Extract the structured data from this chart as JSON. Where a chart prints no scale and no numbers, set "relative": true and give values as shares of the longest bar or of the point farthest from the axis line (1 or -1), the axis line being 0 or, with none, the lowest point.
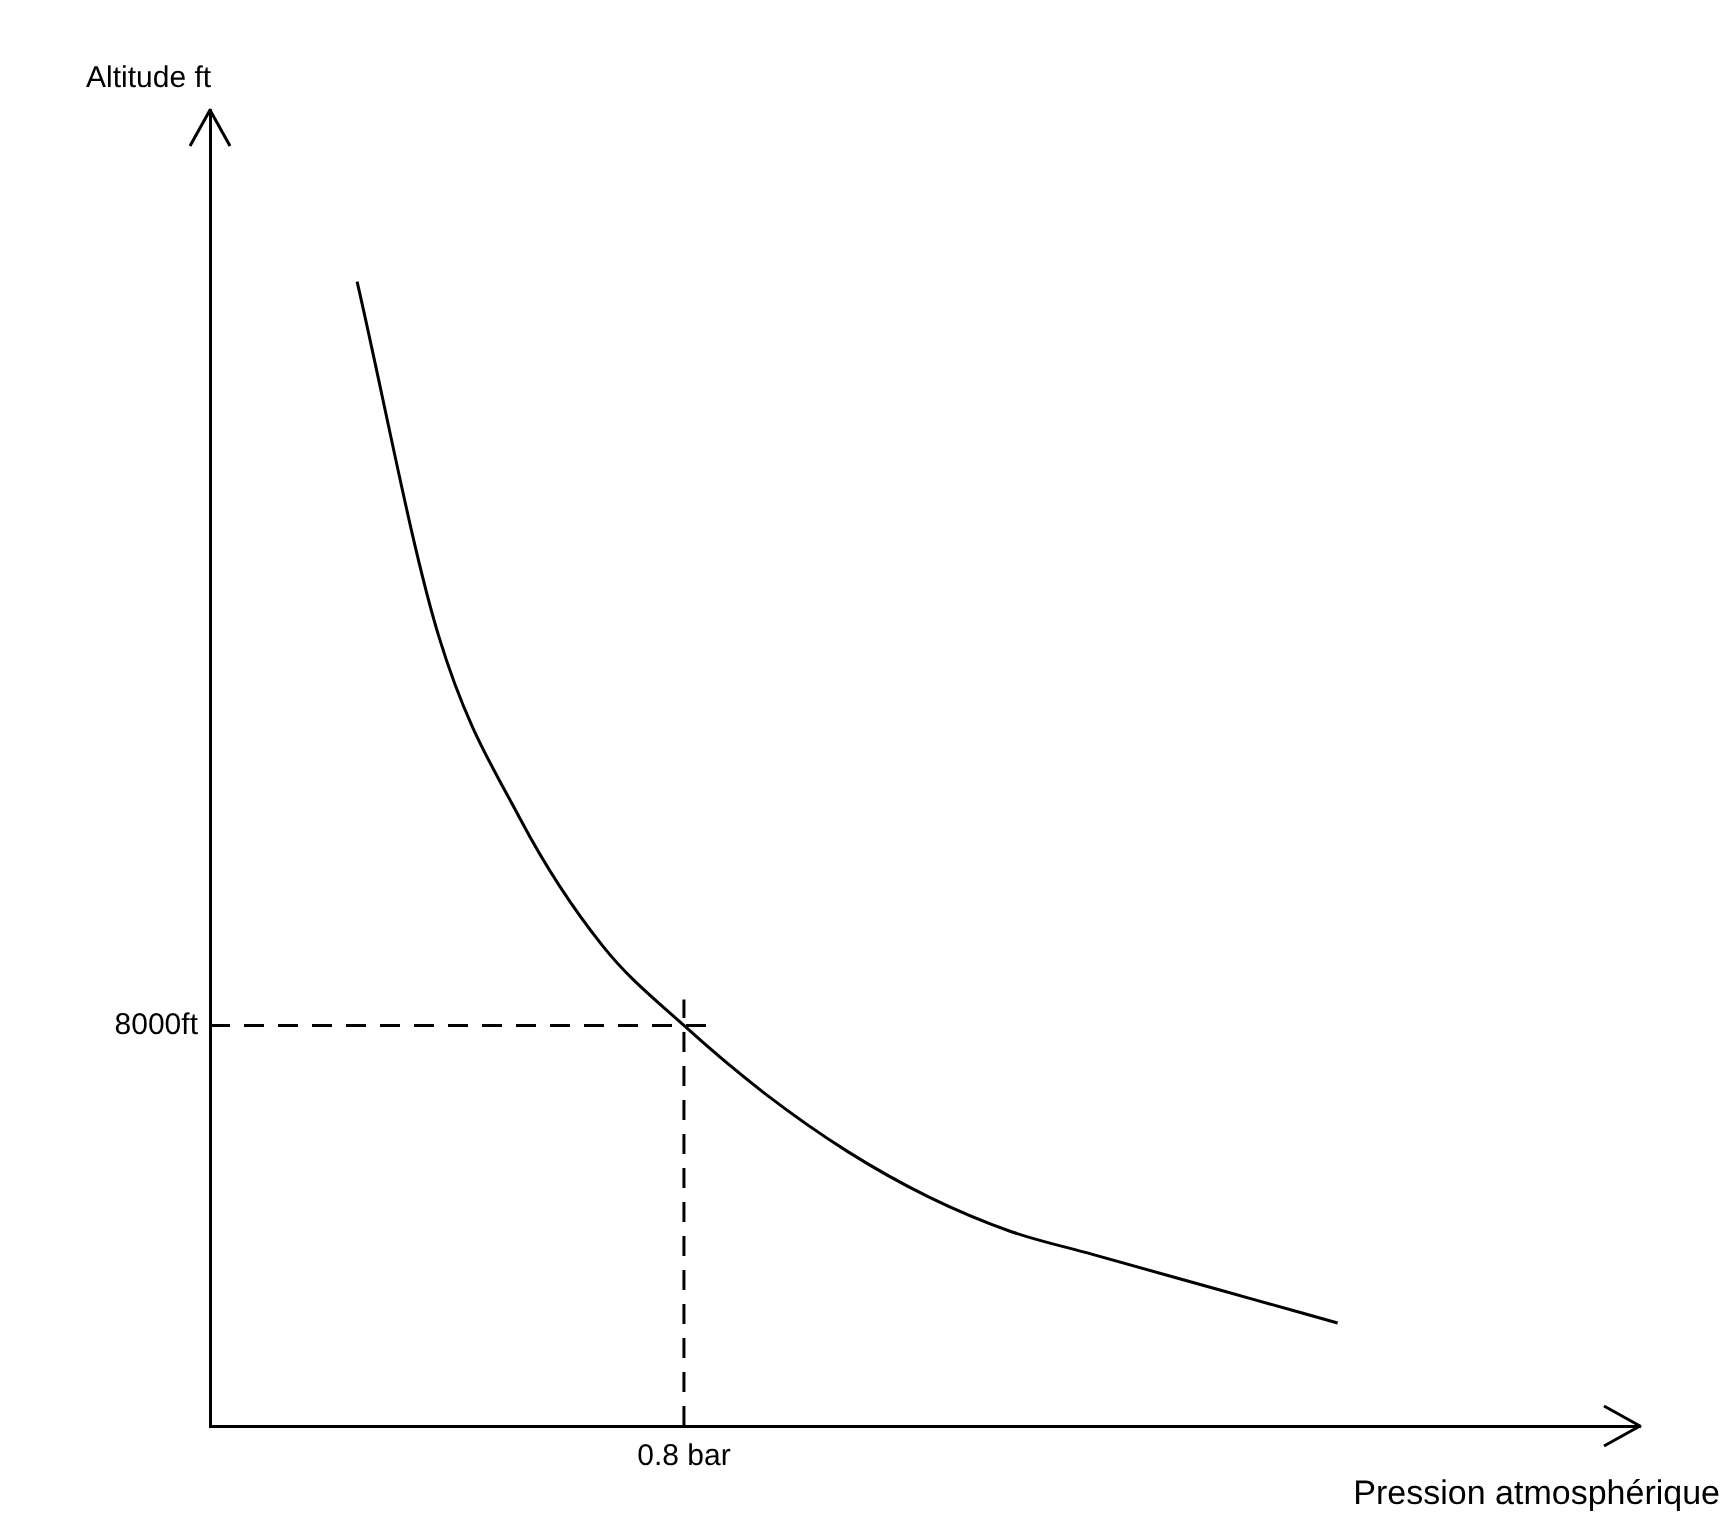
{
  "chart_data": {
    "type": "line",
    "xlabel": "Pression atmosphérique",
    "relative": true,
    "categories": [
      null,
      null,
      null,
      null,
      null,
      null,
      null,
      null,
      null,
      null,
      null,
      null,
      null
    ],
    "series": [
      {
        "color": "#000000",
        "values": [
          1,
          0.69,
          0.53,
          0.42,
          0.35,
          0.29,
          0.24,
          0.2,
          0.17,
          0.15,
          0.13,
          0.11,
          0.09
        ]
      }
    ],
    "ref_lines": [
      {
        "axis": "y",
        "value": 0.35,
        "label": "8000ft",
        "line_style": "dashed",
        "color": "#000000"
      }
    ],
    "annotations": [
      "0.8 bar",
      "Altitude ft"
    ],
    "legend": false,
    "marker": "none",
    "line_style": "solid"
  }
}
